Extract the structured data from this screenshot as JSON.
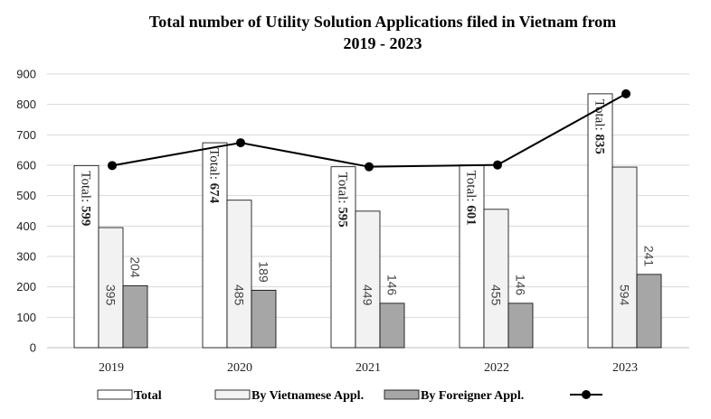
{
  "chart_data": {
    "type": "bar",
    "title": "Total number of Utility Solution Applications filed in Vietnam from\n2019 - 2023",
    "categories": [
      "2019",
      "2020",
      "2021",
      "2022",
      "2023"
    ],
    "series": [
      {
        "name": "Total",
        "values": [
          599,
          674,
          595,
          601,
          835
        ],
        "color": "#ffffff"
      },
      {
        "name": "By Vietnamese Appl.",
        "values": [
          395,
          485,
          449,
          455,
          594
        ],
        "color": "#f2f2f2"
      },
      {
        "name": "By Foreigner Appl.",
        "values": [
          204,
          189,
          146,
          146,
          241
        ],
        "color": "#a6a6a6"
      }
    ],
    "line_series": {
      "name": "",
      "values": [
        599,
        674,
        595,
        601,
        835
      ],
      "color": "#000000"
    },
    "total_label_prefix": "Total: ",
    "ylim": [
      0,
      900
    ],
    "yticks": [
      0,
      100,
      200,
      300,
      400,
      500,
      600,
      700,
      800,
      900
    ],
    "grid": true,
    "legend_position": "bottom"
  }
}
